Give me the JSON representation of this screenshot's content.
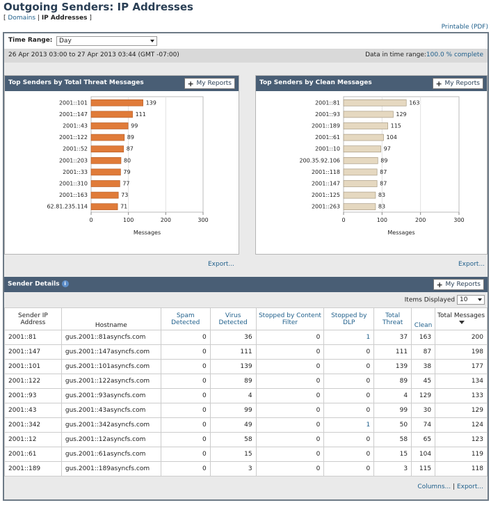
{
  "page": {
    "title": "Outgoing Senders: IP Addresses",
    "crumb_open": "[",
    "crumb_domains": "Domains",
    "crumb_sep": "|",
    "crumb_ip": "IP Addresses",
    "crumb_close": "]",
    "printable": "Printable (PDF)"
  },
  "time_range": {
    "label": "Time Range:",
    "value": "Day",
    "range_text": "26 Apr 2013 03:00 to 27 Apr 2013 03:44 (GMT -07:00)",
    "data_label": "Data in time range:",
    "data_value": "100.0 % complete"
  },
  "colors": {
    "threat_bar": "#e07b39",
    "clean_bar": "#e5d8c0",
    "header": "#495e75"
  },
  "panels": {
    "threat": {
      "title": "Top Senders by Total Threat Messages",
      "button": "My Reports",
      "export": "Export..."
    },
    "clean": {
      "title": "Top Senders by Clean Messages",
      "button": "My Reports",
      "export": "Export..."
    }
  },
  "chart_data": [
    {
      "type": "bar",
      "orientation": "horizontal",
      "categories": [
        "2001::101",
        "2001::147",
        "2001::43",
        "2001::122",
        "2001::52",
        "2001::203",
        "2001::33",
        "2001::310",
        "2001::163",
        "62.81.235.114"
      ],
      "values": [
        139,
        111,
        99,
        89,
        87,
        80,
        79,
        77,
        73,
        71
      ],
      "xlabel": "Messages",
      "xlim": [
        0,
        300
      ],
      "ticks": [
        0,
        100,
        200,
        300
      ]
    },
    {
      "type": "bar",
      "orientation": "horizontal",
      "categories": [
        "2001::81",
        "2001::93",
        "2001::189",
        "2001::61",
        "2001::10",
        "200.35.92.106",
        "2001::118",
        "2001::147",
        "2001::125",
        "2001::263"
      ],
      "values": [
        163,
        129,
        115,
        104,
        97,
        89,
        87,
        87,
        83,
        83
      ],
      "xlabel": "Messages",
      "xlim": [
        0,
        300
      ],
      "ticks": [
        0,
        100,
        200,
        300
      ]
    }
  ],
  "details": {
    "title": "Sender Details",
    "button": "My Reports",
    "items_label": "Items Displayed",
    "items_value": "10",
    "columns_link": "Columns...",
    "sep": "|",
    "export_link": "Export...",
    "headers": [
      "Sender IP Address",
      "Hostname",
      "Spam Detected",
      "Virus Detected",
      "Stopped by Content Filter",
      "Stopped by DLP",
      "Total Threat",
      "Clean",
      "Total Messages"
    ],
    "rows": [
      [
        "2001::81",
        "gus.2001::81asyncfs.com",
        "0",
        "36",
        "0",
        "1",
        "37",
        "163",
        "200"
      ],
      [
        "2001::147",
        "gus.2001::147asyncfs.com",
        "0",
        "111",
        "0",
        "0",
        "111",
        "87",
        "198"
      ],
      [
        "2001::101",
        "gus.2001::101asyncfs.com",
        "0",
        "139",
        "0",
        "0",
        "139",
        "38",
        "177"
      ],
      [
        "2001::122",
        "gus.2001::122asyncfs.com",
        "0",
        "89",
        "0",
        "0",
        "89",
        "45",
        "134"
      ],
      [
        "2001::93",
        "gus.2001::93asyncfs.com",
        "0",
        "4",
        "0",
        "0",
        "4",
        "129",
        "133"
      ],
      [
        "2001::43",
        "gus.2001::43asyncfs.com",
        "0",
        "99",
        "0",
        "0",
        "99",
        "30",
        "129"
      ],
      [
        "2001::342",
        "gus.2001::342asyncfs.com",
        "0",
        "49",
        "0",
        "1",
        "50",
        "74",
        "124"
      ],
      [
        "2001::12",
        "gus.2001::12asyncfs.com",
        "0",
        "58",
        "0",
        "0",
        "58",
        "65",
        "123"
      ],
      [
        "2001::61",
        "gus.2001::61asyncfs.com",
        "0",
        "15",
        "0",
        "0",
        "15",
        "104",
        "119"
      ],
      [
        "2001::189",
        "gus.2001::189asyncfs.com",
        "0",
        "3",
        "0",
        "0",
        "3",
        "115",
        "118"
      ]
    ]
  }
}
